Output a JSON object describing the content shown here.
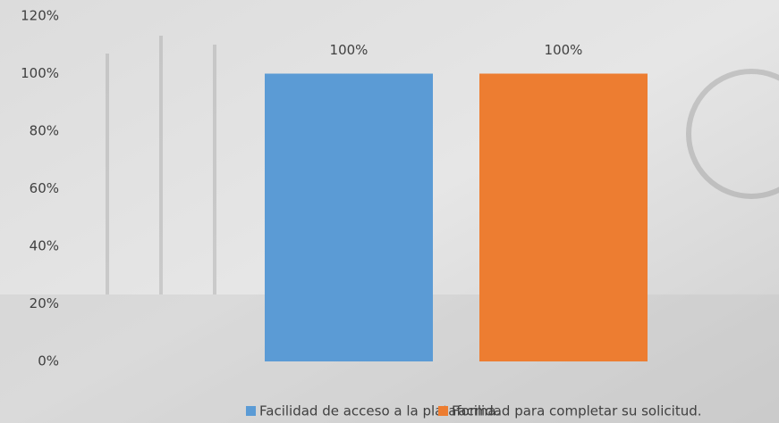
{
  "chart_data": {
    "type": "bar",
    "categories": [
      null
    ],
    "series": [
      {
        "name": "Facilidad de acceso a la plataforma.",
        "color": "#5b9bd5",
        "values": [
          100
        ],
        "value_labels": [
          "100%"
        ]
      },
      {
        "name": "Facilidad para completar su solicitud.",
        "color": "#ed7d31",
        "values": [
          100
        ],
        "value_labels": [
          "100%"
        ]
      }
    ],
    "ylim": [
      0,
      120
    ],
    "yticks": [
      {
        "value": 0,
        "label": "0%"
      },
      {
        "value": 20,
        "label": "20%"
      },
      {
        "value": 40,
        "label": "40%"
      },
      {
        "value": 60,
        "label": "60%"
      },
      {
        "value": 80,
        "label": "80%"
      },
      {
        "value": 100,
        "label": "100%"
      },
      {
        "value": 120,
        "label": "120%"
      }
    ],
    "grid": false,
    "legend": "bottom"
  }
}
